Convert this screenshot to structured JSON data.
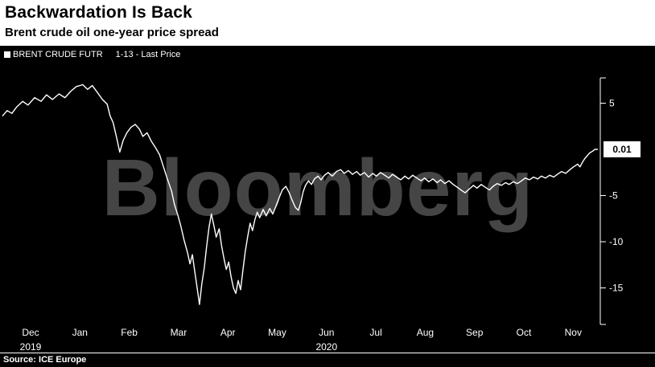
{
  "header": {
    "title": "Backwardation Is Back",
    "subtitle": "Brent crude oil one-year price spread"
  },
  "legend": {
    "series_name": "BRENT CRUDE FUTR",
    "series_detail": "1-13 - Last Price"
  },
  "source": {
    "label": "Source: ICE Europe"
  },
  "colors": {
    "background": "#000000",
    "header_background": "#ffffff",
    "line": "#ffffff",
    "axis": "#ffffff",
    "watermark": "#454545",
    "last_price_box": "#ffffff",
    "last_price_text": "#000000"
  },
  "chart_data": {
    "type": "line",
    "title": "Backwardation Is Back",
    "subtitle": "Brent crude oil one-year price spread",
    "xlabel": "",
    "ylabel": "",
    "ylim": [
      -17.5,
      8
    ],
    "grid": false,
    "legend_position": "top-left",
    "watermark": "Bloomberg",
    "x_range": [
      "Dec 2019",
      "Nov 2020"
    ],
    "x_ticks": {
      "months": [
        "Dec",
        "Jan",
        "Feb",
        "Mar",
        "Apr",
        "May",
        "Jun",
        "Jul",
        "Aug",
        "Sep",
        "Oct",
        "Nov"
      ],
      "years": [
        {
          "label": "2019",
          "month_index": 0
        },
        {
          "label": "2020",
          "month_index": 6
        }
      ]
    },
    "y_ticks": [
      {
        "label": "5",
        "value": 5
      },
      {
        "label": "-5",
        "value": -5
      },
      {
        "label": "-10",
        "value": -10
      },
      {
        "label": "-15",
        "value": -15
      }
    ],
    "last_price": {
      "label": "0.01",
      "value": 0.01
    },
    "series": [
      {
        "name": "BRENT CRUDE FUTR 1-13 - Last Price",
        "color": "#ffffff",
        "points": [
          [
            0.0,
            3.6
          ],
          [
            0.008,
            4.2
          ],
          [
            0.016,
            3.9
          ],
          [
            0.024,
            4.6
          ],
          [
            0.034,
            5.2
          ],
          [
            0.043,
            4.8
          ],
          [
            0.054,
            5.6
          ],
          [
            0.065,
            5.2
          ],
          [
            0.074,
            5.9
          ],
          [
            0.084,
            5.4
          ],
          [
            0.095,
            6.0
          ],
          [
            0.105,
            5.6
          ],
          [
            0.115,
            6.3
          ],
          [
            0.124,
            6.8
          ],
          [
            0.135,
            7.0
          ],
          [
            0.143,
            6.5
          ],
          [
            0.151,
            6.9
          ],
          [
            0.159,
            6.2
          ],
          [
            0.168,
            5.4
          ],
          [
            0.176,
            4.9
          ],
          [
            0.181,
            3.6
          ],
          [
            0.186,
            2.9
          ],
          [
            0.192,
            1.2
          ],
          [
            0.197,
            -0.3
          ],
          [
            0.203,
            1.0
          ],
          [
            0.209,
            1.8
          ],
          [
            0.216,
            2.4
          ],
          [
            0.223,
            2.7
          ],
          [
            0.23,
            2.2
          ],
          [
            0.236,
            1.4
          ],
          [
            0.243,
            1.8
          ],
          [
            0.25,
            0.9
          ],
          [
            0.257,
            0.2
          ],
          [
            0.264,
            -0.6
          ],
          [
            0.27,
            -1.8
          ],
          [
            0.277,
            -3.2
          ],
          [
            0.284,
            -4.5
          ],
          [
            0.289,
            -6.0
          ],
          [
            0.295,
            -7.2
          ],
          [
            0.3,
            -8.4
          ],
          [
            0.305,
            -9.8
          ],
          [
            0.311,
            -11.2
          ],
          [
            0.315,
            -12.4
          ],
          [
            0.319,
            -11.4
          ],
          [
            0.323,
            -13.2
          ],
          [
            0.327,
            -15.0
          ],
          [
            0.331,
            -16.8
          ],
          [
            0.335,
            -14.5
          ],
          [
            0.339,
            -12.8
          ],
          [
            0.343,
            -10.5
          ],
          [
            0.347,
            -8.4
          ],
          [
            0.351,
            -7.0
          ],
          [
            0.355,
            -8.2
          ],
          [
            0.359,
            -9.5
          ],
          [
            0.364,
            -8.6
          ],
          [
            0.368,
            -10.4
          ],
          [
            0.372,
            -11.8
          ],
          [
            0.376,
            -13.0
          ],
          [
            0.38,
            -12.2
          ],
          [
            0.384,
            -13.8
          ],
          [
            0.388,
            -15.0
          ],
          [
            0.392,
            -15.6
          ],
          [
            0.396,
            -14.2
          ],
          [
            0.4,
            -15.2
          ],
          [
            0.404,
            -13.0
          ],
          [
            0.408,
            -11.0
          ],
          [
            0.412,
            -9.4
          ],
          [
            0.416,
            -8.0
          ],
          [
            0.42,
            -8.8
          ],
          [
            0.424,
            -7.6
          ],
          [
            0.428,
            -6.8
          ],
          [
            0.432,
            -7.4
          ],
          [
            0.438,
            -6.5
          ],
          [
            0.443,
            -7.2
          ],
          [
            0.449,
            -6.4
          ],
          [
            0.454,
            -7.0
          ],
          [
            0.459,
            -6.2
          ],
          [
            0.465,
            -5.2
          ],
          [
            0.47,
            -4.4
          ],
          [
            0.476,
            -4.0
          ],
          [
            0.481,
            -4.6
          ],
          [
            0.486,
            -5.4
          ],
          [
            0.492,
            -6.3
          ],
          [
            0.497,
            -6.6
          ],
          [
            0.501,
            -5.8
          ],
          [
            0.505,
            -4.6
          ],
          [
            0.509,
            -3.9
          ],
          [
            0.514,
            -3.4
          ],
          [
            0.519,
            -3.8
          ],
          [
            0.524,
            -3.2
          ],
          [
            0.53,
            -2.9
          ],
          [
            0.535,
            -3.3
          ],
          [
            0.541,
            -2.8
          ],
          [
            0.547,
            -2.5
          ],
          [
            0.554,
            -2.9
          ],
          [
            0.561,
            -2.4
          ],
          [
            0.568,
            -2.2
          ],
          [
            0.574,
            -2.6
          ],
          [
            0.581,
            -2.3
          ],
          [
            0.588,
            -2.7
          ],
          [
            0.595,
            -2.4
          ],
          [
            0.601,
            -2.8
          ],
          [
            0.608,
            -2.5
          ],
          [
            0.615,
            -3.0
          ],
          [
            0.622,
            -2.6
          ],
          [
            0.628,
            -2.9
          ],
          [
            0.635,
            -2.5
          ],
          [
            0.642,
            -2.8
          ],
          [
            0.649,
            -3.1
          ],
          [
            0.655,
            -2.7
          ],
          [
            0.662,
            -3.0
          ],
          [
            0.669,
            -3.3
          ],
          [
            0.676,
            -2.9
          ],
          [
            0.682,
            -3.2
          ],
          [
            0.689,
            -2.8
          ],
          [
            0.696,
            -3.1
          ],
          [
            0.703,
            -3.4
          ],
          [
            0.709,
            -3.1
          ],
          [
            0.716,
            -3.5
          ],
          [
            0.723,
            -3.2
          ],
          [
            0.73,
            -3.6
          ],
          [
            0.736,
            -3.3
          ],
          [
            0.743,
            -3.7
          ],
          [
            0.75,
            -3.4
          ],
          [
            0.757,
            -3.8
          ],
          [
            0.764,
            -4.1
          ],
          [
            0.77,
            -4.4
          ],
          [
            0.777,
            -4.7
          ],
          [
            0.784,
            -4.3
          ],
          [
            0.791,
            -3.9
          ],
          [
            0.797,
            -4.2
          ],
          [
            0.804,
            -3.8
          ],
          [
            0.811,
            -4.1
          ],
          [
            0.818,
            -4.4
          ],
          [
            0.824,
            -4.0
          ],
          [
            0.831,
            -3.7
          ],
          [
            0.838,
            -3.9
          ],
          [
            0.845,
            -3.6
          ],
          [
            0.851,
            -3.8
          ],
          [
            0.858,
            -3.5
          ],
          [
            0.865,
            -3.7
          ],
          [
            0.872,
            -3.4
          ],
          [
            0.878,
            -3.1
          ],
          [
            0.885,
            -3.3
          ],
          [
            0.892,
            -3.0
          ],
          [
            0.899,
            -3.2
          ],
          [
            0.905,
            -2.9
          ],
          [
            0.912,
            -3.1
          ],
          [
            0.919,
            -2.8
          ],
          [
            0.926,
            -3.0
          ],
          [
            0.932,
            -2.7
          ],
          [
            0.939,
            -2.4
          ],
          [
            0.946,
            -2.6
          ],
          [
            0.953,
            -2.2
          ],
          [
            0.959,
            -1.9
          ],
          [
            0.966,
            -1.6
          ],
          [
            0.97,
            -1.9
          ],
          [
            0.974,
            -1.4
          ],
          [
            0.978,
            -1.0
          ],
          [
            0.982,
            -0.7
          ],
          [
            0.986,
            -0.4
          ],
          [
            0.991,
            -0.2
          ],
          [
            0.995,
            0.0
          ],
          [
            1.0,
            0.01
          ]
        ]
      }
    ]
  }
}
